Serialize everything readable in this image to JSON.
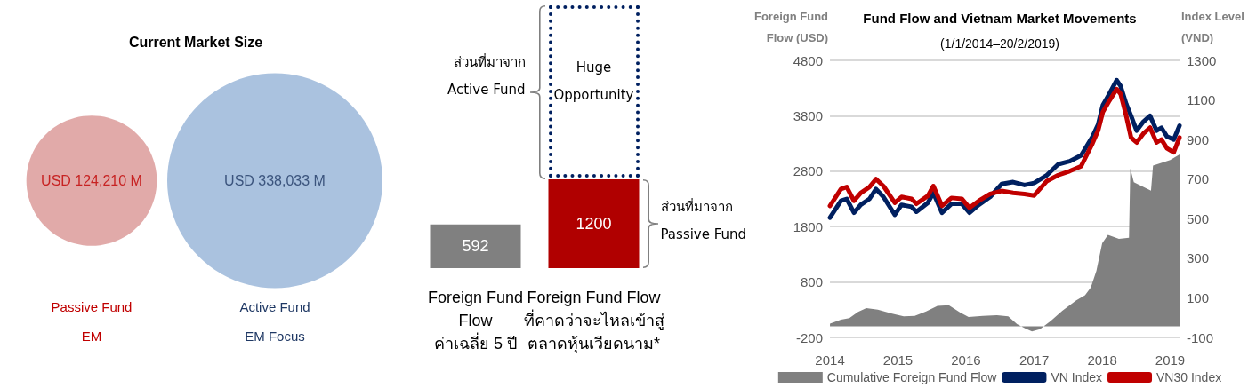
{
  "chart_data": [
    {
      "type": "other",
      "title": "Current Market Size",
      "categories": [
        "Passive Fund\nEM",
        "Active Fund\nEM Focus"
      ],
      "values": [
        124210,
        338033
      ],
      "value_labels": [
        "USD 124,210 M",
        "USD 338,033 M"
      ],
      "colors": [
        "#d99594",
        "#95b3d7"
      ]
    },
    {
      "type": "bar",
      "categories": [
        "Foreign Fund\nFlow\nค่าเฉลี่ย 5 ปี",
        "Foreign Fund Flow\nที่คาดว่าจะไหลเข้าสู่\nตลาดหุ้นเวียดนาม*"
      ],
      "values": [
        592,
        1200
      ],
      "colors": [
        "#808080",
        "#b00000"
      ],
      "data_labels": true,
      "annotations": [
        "Huge\nOpportunity",
        "ส่วนที่มาจาก\nActive Fund",
        "ส่วนที่มาจาก\nPassive Fund"
      ]
    },
    {
      "type": "line",
      "title": "Fund Flow and Vietnam Market Movements",
      "subtitle": "(1/1/2014–20/2/2019)",
      "ylabel": "Foreign Fund\nFlow (USD)",
      "y2label": "Index Level\n(VND)",
      "xlim": [
        "2014-01-01",
        "2019-02-20"
      ],
      "xticks": [
        {
          "value": "2014-01-01",
          "label": "2014"
        },
        {
          "value": "2015-01-01",
          "label": "2015"
        },
        {
          "value": "2016-01-01",
          "label": "2016"
        },
        {
          "value": "2017-01-01",
          "label": "2017"
        },
        {
          "value": "2018-01-01",
          "label": "2018"
        },
        {
          "value": "2019-01-01",
          "label": "2019"
        }
      ],
      "ylim": [
        -200,
        4800
      ],
      "yticks": [
        -200,
        800,
        1800,
        2800,
        3800,
        4800
      ],
      "y2lim": [
        -100,
        1300
      ],
      "y2ticks": [
        -100,
        100,
        300,
        500,
        700,
        900,
        1100,
        1300
      ],
      "grid": "y",
      "legend": "bottom",
      "marker": "none",
      "line_style": "solid",
      "series": [
        {
          "name": "Cumulative Foreign Fund Flow",
          "type": "area",
          "color": "#808080",
          "x": [
            "2014-01-01",
            "2014-03-01",
            "2014-04-15",
            "2014-06-01",
            "2014-07-15",
            "2014-09-15",
            "2014-12-01",
            "2015-02-01",
            "2015-04-01",
            "2015-06-01",
            "2015-08-01",
            "2015-10-01",
            "2015-12-01",
            "2016-01-15",
            "2016-04-01",
            "2016-06-15",
            "2016-08-15",
            "2016-10-01",
            "2016-11-15",
            "2016-12-20",
            "2017-02-01",
            "2017-04-01",
            "2017-06-01",
            "2017-08-15",
            "2017-10-01",
            "2017-11-01",
            "2017-12-01",
            "2018-01-01",
            "2018-02-01",
            "2018-04-01",
            "2018-05-25",
            "2018-06-01",
            "2018-06-20",
            "2018-09-20",
            "2018-10-01",
            "2019-01-01",
            "2019-02-20"
          ],
          "values": [
            50,
            120,
            150,
            260,
            330,
            300,
            230,
            180,
            190,
            270,
            370,
            380,
            250,
            170,
            190,
            200,
            180,
            40,
            -40,
            -90,
            -50,
            100,
            280,
            470,
            560,
            700,
            1000,
            1500,
            1650,
            1580,
            1600,
            2850,
            2600,
            2450,
            2900,
            3000,
            3100
          ]
        },
        {
          "name": "VN Index",
          "color": "#002060",
          "axis": "y2",
          "x": [
            "2014-01-01",
            "2014-03-01",
            "2014-04-01",
            "2014-05-10",
            "2014-06-15",
            "2014-08-01",
            "2014-09-05",
            "2014-10-15",
            "2014-12-15",
            "2015-01-20",
            "2015-03-15",
            "2015-04-10",
            "2015-06-10",
            "2015-07-10",
            "2015-08-25",
            "2015-10-15",
            "2015-12-10",
            "2016-01-20",
            "2016-03-10",
            "2016-05-10",
            "2016-07-10",
            "2016-09-10",
            "2016-11-10",
            "2017-01-01",
            "2017-03-10",
            "2017-05-10",
            "2017-07-10",
            "2017-09-10",
            "2017-11-10",
            "2017-12-10",
            "2018-01-05",
            "2018-02-05",
            "2018-03-20",
            "2018-04-10",
            "2018-05-10",
            "2018-06-05",
            "2018-07-05",
            "2018-08-10",
            "2018-09-15",
            "2018-10-20",
            "2018-11-15",
            "2018-12-15",
            "2019-01-20",
            "2019-02-20"
          ],
          "values": [
            505,
            590,
            600,
            530,
            570,
            600,
            650,
            610,
            520,
            570,
            560,
            535,
            580,
            630,
            530,
            575,
            575,
            530,
            570,
            610,
            675,
            685,
            670,
            680,
            720,
            775,
            790,
            820,
            915,
            975,
            1075,
            1125,
            1200,
            1170,
            1080,
            1020,
            945,
            990,
            1020,
            945,
            960,
            915,
            900,
            970
          ]
        },
        {
          "name": "VN30 Index",
          "color": "#c00000",
          "axis": "y2",
          "x": [
            "2014-01-01",
            "2014-03-01",
            "2014-04-01",
            "2014-05-10",
            "2014-06-15",
            "2014-08-01",
            "2014-09-05",
            "2014-10-15",
            "2014-12-15",
            "2015-01-20",
            "2015-03-15",
            "2015-04-10",
            "2015-06-10",
            "2015-07-10",
            "2015-08-25",
            "2015-10-15",
            "2015-12-10",
            "2016-01-20",
            "2016-03-10",
            "2016-05-10",
            "2016-07-10",
            "2016-09-10",
            "2016-11-10",
            "2017-01-01",
            "2017-03-10",
            "2017-05-10",
            "2017-07-10",
            "2017-09-10",
            "2017-11-10",
            "2017-12-10",
            "2018-01-05",
            "2018-02-05",
            "2018-03-20",
            "2018-04-10",
            "2018-05-10",
            "2018-06-05",
            "2018-07-05",
            "2018-08-10",
            "2018-09-15",
            "2018-10-20",
            "2018-11-15",
            "2018-12-15",
            "2019-01-20",
            "2019-02-20"
          ],
          "values": [
            565,
            650,
            660,
            590,
            630,
            660,
            700,
            665,
            580,
            610,
            600,
            575,
            615,
            665,
            565,
            605,
            600,
            555,
            590,
            625,
            640,
            630,
            625,
            617,
            690,
            720,
            740,
            765,
            880,
            945,
            1040,
            1090,
            1155,
            1130,
            1020,
            910,
            885,
            930,
            960,
            885,
            900,
            855,
            835,
            910
          ]
        }
      ]
    }
  ]
}
